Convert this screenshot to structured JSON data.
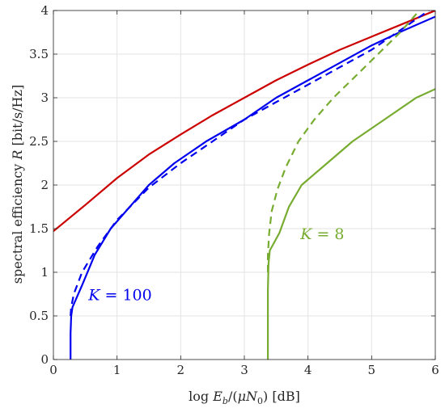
{
  "chart_data": {
    "type": "line",
    "title": "",
    "xlabel": "log E_b/(μN_0) [dB]",
    "ylabel": "spectral efficiency R [bit/s/Hz]",
    "xlim": [
      0,
      6
    ],
    "ylim": [
      0,
      4
    ],
    "xticks": [
      0,
      1,
      2,
      3,
      4,
      5,
      6
    ],
    "yticks": [
      0,
      0.5,
      1,
      1.5,
      2,
      2.5,
      3,
      3.5,
      4
    ],
    "xtick_labels": [
      "0",
      "1",
      "2",
      "3",
      "4",
      "5",
      "6"
    ],
    "ytick_labels": [
      "0",
      "0.5",
      "1",
      "1.5",
      "2",
      "2.5",
      "3",
      "3.5",
      "4"
    ],
    "grid": true,
    "legend": "none",
    "series": [
      {
        "color": "#cc0000",
        "style": "solid",
        "x": [
          0,
          0.5,
          1,
          1.5,
          2,
          2.5,
          3,
          3.5,
          4,
          4.5,
          5,
          5.5,
          6
        ],
        "y": [
          1.47,
          1.77,
          2.08,
          2.35,
          2.58,
          2.8,
          3.0,
          3.2,
          3.38,
          3.55,
          3.7,
          3.85,
          4.0
        ]
      },
      {
        "color": "#0000ee",
        "style": "dashed",
        "x": [
          0.27,
          0.28,
          0.32,
          0.45,
          0.7,
          1.0,
          1.5,
          2.0,
          2.5,
          3.0,
          3.5,
          4.0,
          4.5,
          5.0,
          5.5,
          5.9
        ],
        "y": [
          0.5,
          0.6,
          0.75,
          1.0,
          1.3,
          1.6,
          1.97,
          2.25,
          2.5,
          2.75,
          2.95,
          3.15,
          3.35,
          3.55,
          3.8,
          4.0
        ]
      },
      {
        "color": "#0000ee",
        "style": "solid",
        "x": [
          0.27,
          0.27,
          0.28,
          0.3,
          0.45,
          0.65,
          0.9,
          1.2,
          1.5,
          1.9,
          2.4,
          3.0,
          3.5,
          4.0,
          4.5,
          5.0,
          5.5,
          6.0
        ],
        "y": [
          0,
          0.3,
          0.5,
          0.6,
          0.85,
          1.2,
          1.5,
          1.75,
          2.0,
          2.25,
          2.5,
          2.75,
          3.0,
          3.2,
          3.4,
          3.6,
          3.77,
          3.93
        ]
      },
      {
        "color": "#77ac30",
        "style": "dashed",
        "x": [
          3.37,
          3.37,
          3.39,
          3.43,
          3.52,
          3.65,
          3.85,
          4.1,
          4.4,
          4.75,
          5.1,
          5.45,
          5.75
        ],
        "y": [
          1.0,
          1.2,
          1.45,
          1.7,
          1.95,
          2.2,
          2.5,
          2.75,
          3.0,
          3.25,
          3.5,
          3.75,
          4.0
        ]
      },
      {
        "color": "#77ac30",
        "style": "solid",
        "x": [
          3.37,
          3.37,
          3.38,
          3.4,
          3.55,
          3.7,
          3.9,
          4.3,
          4.7,
          5.2,
          5.7,
          6.0
        ],
        "y": [
          0,
          0.8,
          1.1,
          1.25,
          1.45,
          1.75,
          2.0,
          2.25,
          2.5,
          2.75,
          3.0,
          3.1
        ]
      }
    ],
    "annotations": [
      {
        "text": "K = 100",
        "x": 0.55,
        "y": 0.68,
        "color": "#0000ee"
      },
      {
        "text": "K = 8",
        "x": 3.88,
        "y": 1.38,
        "color": "#77ac30"
      }
    ]
  }
}
